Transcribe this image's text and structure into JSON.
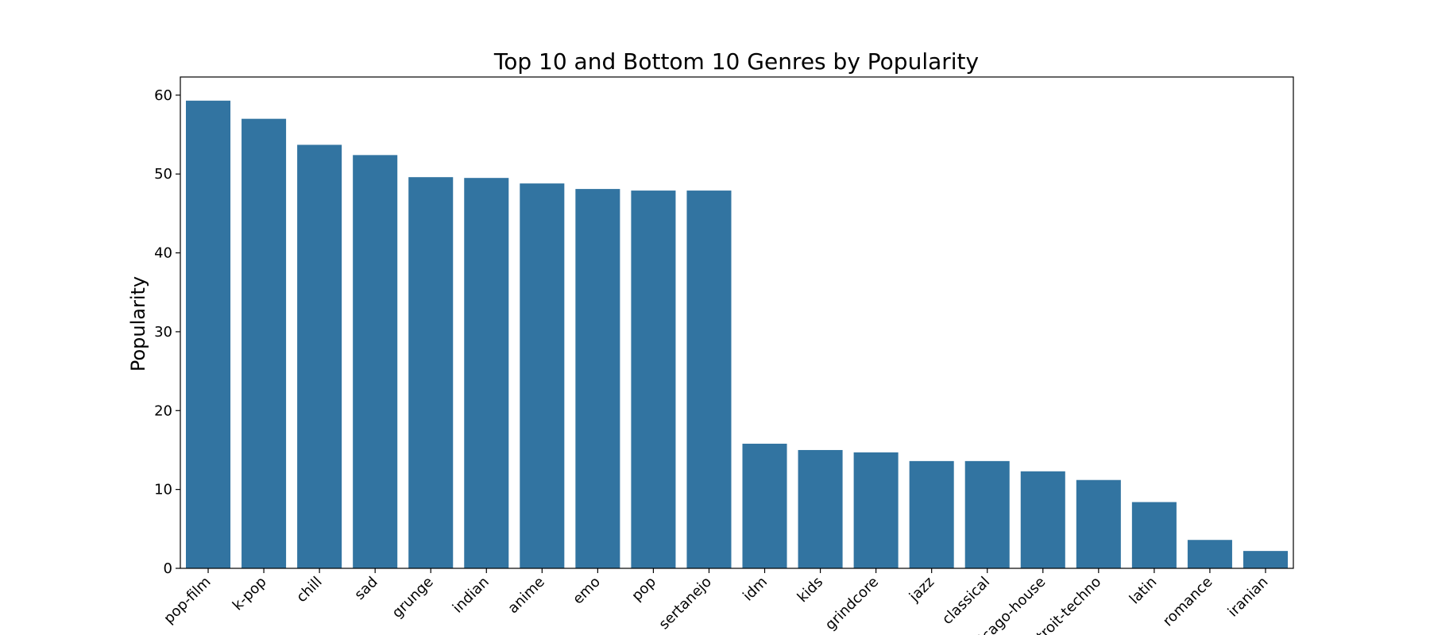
{
  "chart_data": {
    "type": "bar",
    "title": "Top 10 and Bottom 10 Genres by Popularity",
    "xlabel": "",
    "ylabel": "Popularity",
    "ylim": [
      0,
      62.3
    ],
    "yticks": [
      0,
      10,
      20,
      30,
      40,
      50,
      60
    ],
    "grid": false,
    "bar_color": "#3274a1",
    "categories": [
      "pop-film",
      "k-pop",
      "chill",
      "sad",
      "grunge",
      "indian",
      "anime",
      "emo",
      "pop",
      "sertanejo",
      "idm",
      "kids",
      "grindcore",
      "jazz",
      "classical",
      "chicago-house",
      "detroit-techno",
      "latin",
      "romance",
      "iranian"
    ],
    "values": [
      59.3,
      57.0,
      53.7,
      52.4,
      49.6,
      49.5,
      48.8,
      48.1,
      47.9,
      47.9,
      15.8,
      15.0,
      14.7,
      13.6,
      13.6,
      12.3,
      11.2,
      8.4,
      3.6,
      2.2
    ]
  }
}
